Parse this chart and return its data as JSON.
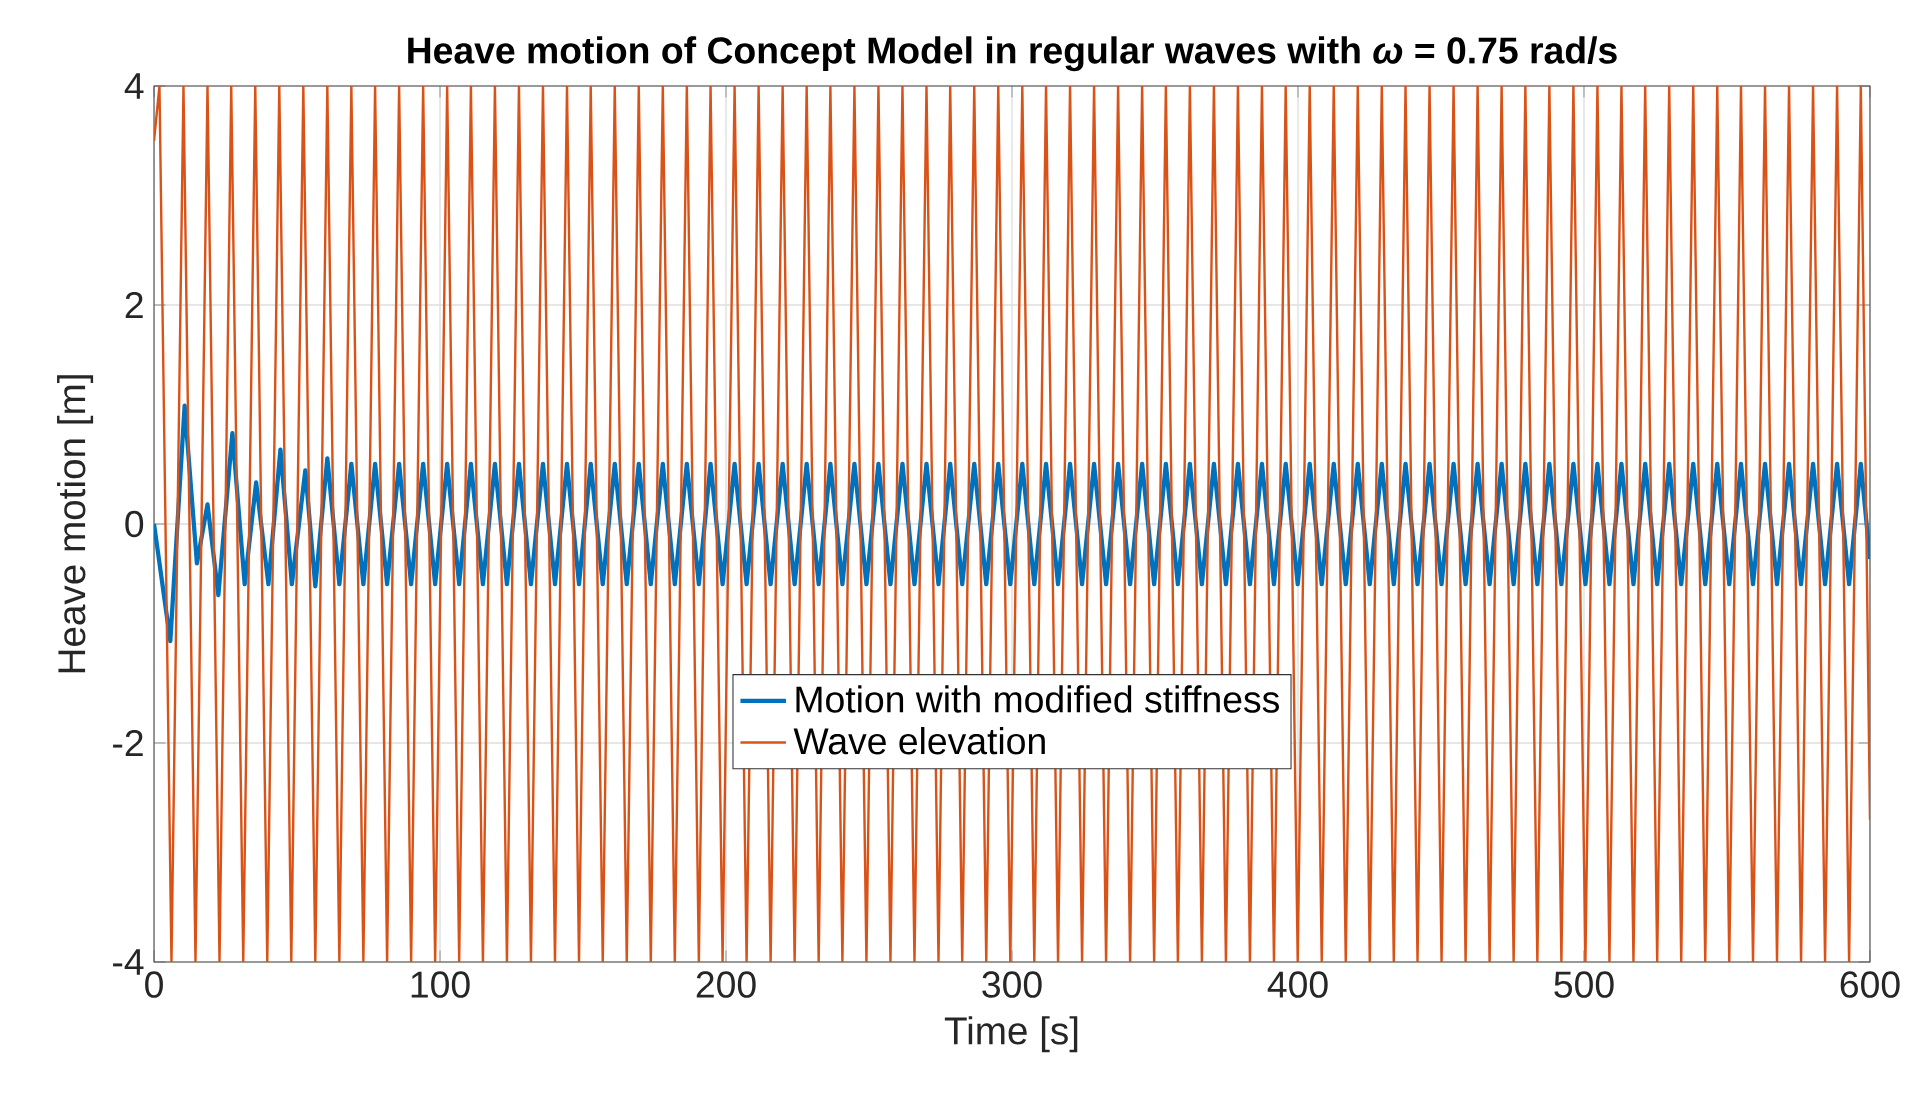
{
  "chart_data": {
    "type": "line",
    "title": "Heave motion of Concept Model in regular waves with   *ω* = 0.75 rad/s",
    "xlabel": "Time [s]",
    "ylabel": "Heave motion [m]",
    "xlim": [
      0,
      600
    ],
    "ylim": [
      -4,
      4
    ],
    "xticks": [
      0,
      100,
      200,
      300,
      400,
      500,
      600
    ],
    "yticks": [
      -4,
      -2,
      0,
      2,
      4
    ],
    "grid": true,
    "legend": "bottom",
    "series": [
      {
        "name": "Motion with modified stiffness",
        "color": "#0072bd",
        "x": [
          0,
          5.7,
          10.7,
          15,
          18.7,
          22.5,
          27.4,
          31.7,
          35.7,
          40,
          44.2,
          48.2,
          52.9,
          56.4,
          60.6,
          64.8,
          69.0,
          73.2,
          77.3,
          81.5,
          85.7,
          89.9,
          94.1,
          98.3,
          102.5,
          106.7,
          110.8,
          115.0,
          119.2,
          123.4,
          127.6,
          131.8,
          136.0,
          140.2,
          144.4,
          148.6,
          152.7,
          156.9,
          161.1,
          165.3,
          169.5,
          173.7,
          177.9,
          182.1,
          186.3,
          190.5,
          194.6,
          198.8,
          203.0,
          207.2,
          211.4,
          215.6,
          219.8,
          224.0,
          228.2,
          232.4,
          236.5,
          240.7,
          244.9,
          249.1,
          253.3,
          257.5,
          261.7,
          265.9,
          270.1,
          274.3,
          278.4,
          282.6,
          286.8,
          291.0,
          295.2,
          299.4,
          303.6,
          307.8,
          311.9,
          316.1,
          320.3,
          324.5,
          328.7,
          332.9,
          337.1,
          341.3,
          345.5,
          349.7,
          353.8,
          358.0,
          362.2,
          366.4,
          370.6,
          374.8,
          379.0,
          383.2,
          387.4,
          391.6,
          395.7,
          399.9,
          404.1,
          408.3,
          412.5,
          416.7,
          420.9,
          425.1,
          429.3,
          433.5,
          437.6,
          441.8,
          446.0,
          450.2,
          454.4,
          458.6,
          462.8,
          467.0,
          471.2,
          475.4,
          479.5,
          483.7,
          487.9,
          492.1,
          496.3,
          500.5,
          504.7,
          508.9,
          513.1,
          517.3,
          521.4,
          525.6,
          529.8,
          534.0,
          538.2,
          542.4,
          546.6,
          550.8,
          554.9,
          559.1,
          563.3,
          567.5,
          571.7,
          575.9,
          580.1,
          584.3,
          588.5,
          592.7,
          596.8,
          600
        ],
        "values": [
          0,
          -1.07,
          1.08,
          -0.36,
          0.18,
          -0.65,
          0.83,
          -0.55,
          0.38,
          -0.55,
          0.68,
          -0.55,
          0.49,
          -0.57,
          0.6,
          -0.55,
          0.55,
          -0.55,
          0.55,
          -0.55,
          0.55,
          -0.55,
          0.55,
          -0.55,
          0.55,
          -0.55,
          0.55,
          -0.55,
          0.55,
          -0.55,
          0.55,
          -0.55,
          0.55,
          -0.55,
          0.55,
          -0.55,
          0.55,
          -0.55,
          0.55,
          -0.55,
          0.55,
          -0.55,
          0.55,
          -0.55,
          0.55,
          -0.55,
          0.55,
          -0.55,
          0.55,
          -0.55,
          0.55,
          -0.55,
          0.55,
          -0.55,
          0.55,
          -0.55,
          0.55,
          -0.55,
          0.55,
          -0.55,
          0.55,
          -0.55,
          0.55,
          -0.55,
          0.55,
          -0.55,
          0.55,
          -0.55,
          0.55,
          -0.55,
          0.55,
          -0.55,
          0.55,
          -0.55,
          0.55,
          -0.55,
          0.55,
          -0.55,
          0.55,
          -0.55,
          0.55,
          -0.55,
          0.55,
          -0.55,
          0.55,
          -0.55,
          0.55,
          -0.55,
          0.55,
          -0.55,
          0.55,
          -0.55,
          0.55,
          -0.55,
          0.55,
          -0.55,
          0.55,
          -0.55,
          0.55,
          -0.55,
          0.55,
          -0.55,
          0.55,
          -0.55,
          0.55,
          -0.55,
          0.55,
          -0.55,
          0.55,
          -0.55,
          0.55,
          -0.55,
          0.55,
          -0.55,
          0.55,
          -0.55,
          0.55,
          -0.55,
          0.55,
          -0.55,
          0.55,
          -0.55,
          0.55,
          -0.55,
          0.55,
          -0.55,
          0.55,
          -0.55,
          0.55,
          -0.55,
          0.55,
          -0.55,
          0.55,
          -0.55,
          0.55,
          -0.55,
          0.55,
          -0.55,
          0.55,
          -0.55,
          0.55,
          -0.55,
          0.55,
          -0.32
        ]
      },
      {
        "name": "Wave elevation",
        "color": "#d95319",
        "x": [
          0,
          1.9,
          6.1,
          10.3,
          14.5,
          18.7,
          22.9,
          27.0,
          31.2,
          35.4,
          39.6,
          43.8,
          48.0,
          52.2,
          56.4,
          60.6,
          64.8,
          69.0,
          73.2,
          77.3,
          81.5,
          85.7,
          89.9,
          94.1,
          98.3,
          102.5,
          106.7,
          110.8,
          115.0,
          119.2,
          123.4,
          127.6,
          131.8,
          136.0,
          140.2,
          144.4,
          148.6,
          152.7,
          156.9,
          161.1,
          165.3,
          169.5,
          173.7,
          177.9,
          182.1,
          186.3,
          190.5,
          194.6,
          198.8,
          203.0,
          207.2,
          211.4,
          215.6,
          219.8,
          224.0,
          228.2,
          232.4,
          236.5,
          240.7,
          244.9,
          249.1,
          253.3,
          257.5,
          261.7,
          265.9,
          270.1,
          274.3,
          278.4,
          282.6,
          286.8,
          291.0,
          295.2,
          299.4,
          303.6,
          307.8,
          311.9,
          316.1,
          320.3,
          324.5,
          328.7,
          332.9,
          337.1,
          341.3,
          345.5,
          349.7,
          353.8,
          358.0,
          362.2,
          366.4,
          370.6,
          374.8,
          379.0,
          383.2,
          387.4,
          391.6,
          395.7,
          399.9,
          404.1,
          408.3,
          412.5,
          416.7,
          420.9,
          425.1,
          429.3,
          433.5,
          437.6,
          441.8,
          446.0,
          450.2,
          454.4,
          458.6,
          462.8,
          467.0,
          471.2,
          475.4,
          479.5,
          483.7,
          487.9,
          492.1,
          496.3,
          500.5,
          504.7,
          508.9,
          513.1,
          517.3,
          521.4,
          525.6,
          529.8,
          534.0,
          538.2,
          542.4,
          546.6,
          550.8,
          554.9,
          559.1,
          563.3,
          567.5,
          571.7,
          575.9,
          580.1,
          584.3,
          588.5,
          592.7,
          596.8,
          600
        ],
        "values": [
          3.5,
          4,
          -4,
          4,
          -4,
          4,
          -4,
          4,
          -4,
          4,
          -4,
          4,
          -4,
          4,
          -4,
          4,
          -4,
          4,
          -4,
          4,
          -4,
          4,
          -4,
          4,
          -4,
          4,
          -4,
          4,
          -4,
          4,
          -4,
          4,
          -4,
          4,
          -4,
          4,
          -4,
          4,
          -4,
          4,
          -4,
          4,
          -4,
          4,
          -4,
          4,
          -4,
          4,
          -4,
          4,
          -4,
          4,
          -4,
          4,
          -4,
          4,
          -4,
          4,
          -4,
          4,
          -4,
          4,
          -4,
          4,
          -4,
          4,
          -4,
          4,
          -4,
          4,
          -4,
          4,
          -4,
          4,
          -4,
          4,
          -4,
          4,
          -4,
          4,
          -4,
          4,
          -4,
          4,
          -4,
          4,
          -4,
          4,
          -4,
          4,
          -4,
          4,
          -4,
          4,
          -4,
          4,
          -4,
          4,
          -4,
          4,
          -4,
          4,
          -4,
          4,
          -4,
          4,
          -4,
          4,
          -4,
          4,
          -4,
          4,
          -4,
          4,
          -4,
          4,
          -4,
          4,
          -4,
          4,
          -4,
          4,
          -4,
          4,
          -4,
          4,
          -4,
          4,
          -4,
          4,
          -4,
          4,
          -4,
          4,
          -4,
          4,
          -4,
          4,
          -4,
          4,
          -4,
          4,
          -4,
          4,
          -2.7
        ]
      }
    ]
  }
}
